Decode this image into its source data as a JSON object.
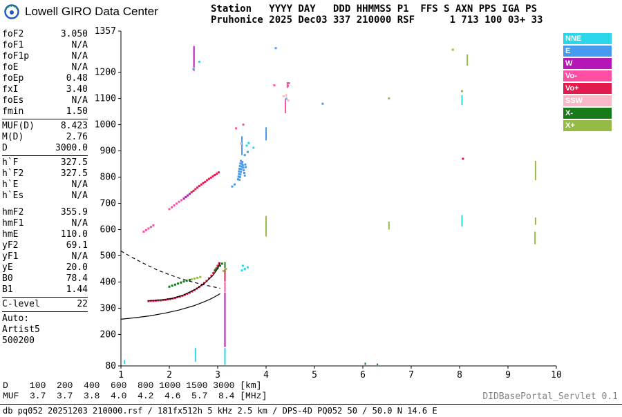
{
  "logo": {
    "text": "Lowell GIRO Data Center"
  },
  "header": {
    "line1": "Station   YYYY DAY   DDD HHMMSS P1  FFS S AXN PPS IGA PS",
    "line2": "Pruhonice 2025 Dec03 337 210000 RSF      1 713 100 03+ 33"
  },
  "params": {
    "groups": [
      {
        "sep": "line",
        "rows": [
          [
            "foF2",
            "3.050"
          ],
          [
            "foF1",
            "N/A"
          ],
          [
            "foF1p",
            "N/A"
          ],
          [
            "foE",
            "N/A"
          ],
          [
            "foEp",
            "0.48"
          ],
          [
            "fxI",
            "3.40"
          ],
          [
            "foEs",
            "N/A"
          ],
          [
            "fmin",
            "1.50"
          ]
        ]
      },
      {
        "sep": "line",
        "rows": [
          [
            "MUF(D)",
            "8.423"
          ],
          [
            "M(D)",
            "2.76"
          ],
          [
            "D",
            "3000.0"
          ]
        ]
      },
      {
        "sep": "gap",
        "rows": [
          [
            "h`F",
            "327.5"
          ],
          [
            "h`F2",
            "327.5"
          ],
          [
            "h`E",
            "N/A"
          ],
          [
            "h`Es",
            "N/A"
          ]
        ]
      },
      {
        "sep": "line",
        "rows": [
          [
            "hmF2",
            "355.9"
          ],
          [
            "hmF1",
            "N/A"
          ],
          [
            "hmE",
            "110.0"
          ],
          [
            "yF2",
            "69.1"
          ],
          [
            "yF1",
            "N/A"
          ],
          [
            "yE",
            "20.0"
          ],
          [
            "B0",
            "78.4"
          ],
          [
            "B1",
            "1.44"
          ]
        ]
      },
      {
        "sep": "line",
        "rows": [
          [
            "C-level",
            "22"
          ]
        ]
      },
      {
        "sep": "none",
        "rows": [
          [
            "Auto:",
            ""
          ],
          [
            "Artist5",
            ""
          ],
          [
            "500200",
            ""
          ]
        ]
      }
    ]
  },
  "chart_data": {
    "type": "scatter",
    "x_unit": "MHz",
    "y_unit": "km",
    "x_range": [
      1,
      10
    ],
    "y_range": [
      80,
      1357
    ],
    "x_ticks": [
      1,
      2,
      3,
      4,
      5,
      6,
      7,
      8,
      9,
      10
    ],
    "y_ticks": [
      1357,
      1200,
      1100,
      1000,
      900,
      800,
      700,
      600,
      500,
      400,
      300,
      200,
      80
    ],
    "grid": false,
    "legend_position": "top-right",
    "legend": [
      {
        "label": "NNE",
        "color": "#2bd6e8"
      },
      {
        "label": "E",
        "color": "#469af0"
      },
      {
        "label": "W",
        "color": "#b517b5"
      },
      {
        "label": "Vo-",
        "color": "#ff4fa3"
      },
      {
        "label": "Vo+",
        "color": "#e31a4d"
      },
      {
        "label": "SSW",
        "color": "#f9b8c6"
      },
      {
        "label": "X-",
        "color": "#187a18"
      },
      {
        "label": "X+",
        "color": "#93bb45"
      }
    ],
    "streaks": [
      [
        "NNE",
        1.07,
        88,
        102
      ],
      [
        "NNE",
        2.54,
        96,
        148
      ],
      [
        "W",
        2.51,
        1218,
        1300
      ],
      [
        "Vo-",
        2.51,
        1204,
        1216
      ],
      [
        "NNE",
        3.15,
        84,
        148
      ],
      [
        "W",
        3.15,
        152,
        360
      ],
      [
        "Vo-",
        3.15,
        362,
        400
      ],
      [
        "Vo+",
        3.15,
        402,
        452
      ],
      [
        "X-",
        3.15,
        454,
        476
      ],
      [
        "E",
        3.5,
        884,
        956
      ],
      [
        "X+",
        4.0,
        574,
        652
      ],
      [
        "E",
        4.0,
        940,
        990
      ],
      [
        "Vo-",
        4.4,
        1044,
        1100
      ],
      [
        "SSW",
        4.42,
        1102,
        1118
      ],
      [
        "Vo-",
        4.44,
        1140,
        1162
      ],
      [
        "X+",
        6.54,
        600,
        630
      ],
      [
        "X-",
        6.05,
        84,
        92
      ],
      [
        "X-",
        6.3,
        83,
        89
      ],
      [
        "NNE",
        8.05,
        612,
        655
      ],
      [
        "NNE",
        8.05,
        1075,
        1112
      ],
      [
        "X+",
        8.16,
        1225,
        1268
      ],
      [
        "X+",
        9.56,
        544,
        592
      ],
      [
        "X+",
        9.57,
        788,
        862
      ],
      [
        "X+",
        9.57,
        618,
        646
      ]
    ],
    "points": {
      "NNE": [
        [
          3.5,
          444
        ],
        [
          3.56,
          450
        ],
        [
          3.62,
          456
        ],
        [
          3.52,
          462
        ],
        [
          3.6,
          920
        ],
        [
          3.64,
          930
        ],
        [
          3.74,
          912
        ],
        [
          2.62,
          1240
        ],
        [
          4.42,
          1098
        ]
      ],
      "E": [
        [
          3.3,
          764
        ],
        [
          3.35,
          772
        ],
        [
          3.42,
          792
        ],
        [
          3.43,
          802
        ],
        [
          3.44,
          812
        ],
        [
          3.44,
          822
        ],
        [
          3.45,
          790
        ],
        [
          3.45,
          832
        ],
        [
          3.46,
          800
        ],
        [
          3.46,
          842
        ],
        [
          3.47,
          810
        ],
        [
          3.47,
          852
        ],
        [
          3.48,
          820
        ],
        [
          3.48,
          862
        ],
        [
          3.49,
          830
        ],
        [
          3.5,
          840
        ],
        [
          3.5,
          850
        ],
        [
          3.51,
          858
        ],
        [
          3.52,
          846
        ],
        [
          3.53,
          836
        ],
        [
          3.54,
          826
        ],
        [
          3.55,
          816
        ],
        [
          3.56,
          806
        ],
        [
          3.57,
          848
        ],
        [
          3.58,
          838
        ],
        [
          3.56,
          884
        ],
        [
          3.62,
          896
        ],
        [
          5.17,
          1080
        ],
        [
          2.5,
          1212
        ],
        [
          4.2,
          1292
        ]
      ],
      "W": [
        [
          2.3,
          718
        ],
        [
          2.34,
          724
        ],
        [
          2.38,
          730
        ],
        [
          2.42,
          736
        ]
      ],
      "Vo-": [
        [
          1.47,
          592
        ],
        [
          1.52,
          598
        ],
        [
          1.57,
          604
        ],
        [
          1.62,
          610
        ],
        [
          1.67,
          616
        ],
        [
          2.0,
          678
        ],
        [
          2.05,
          685
        ],
        [
          2.1,
          692
        ],
        [
          2.15,
          699
        ],
        [
          2.2,
          706
        ],
        [
          2.25,
          712
        ],
        [
          3.38,
          986
        ],
        [
          3.53,
          1000
        ],
        [
          4.17,
          1150
        ],
        [
          4.45,
          1148
        ],
        [
          4.47,
          1158
        ]
      ],
      "Vo+": [
        [
          1.57,
          327
        ],
        [
          1.62,
          328
        ],
        [
          1.67,
          328
        ],
        [
          1.72,
          329
        ],
        [
          1.77,
          330
        ],
        [
          1.82,
          330
        ],
        [
          1.87,
          331
        ],
        [
          1.92,
          332
        ],
        [
          1.97,
          334
        ],
        [
          2.02,
          335
        ],
        [
          2.07,
          337
        ],
        [
          2.12,
          339
        ],
        [
          2.17,
          342
        ],
        [
          2.22,
          344
        ],
        [
          2.27,
          347
        ],
        [
          2.32,
          351
        ],
        [
          2.37,
          355
        ],
        [
          2.42,
          359
        ],
        [
          2.47,
          364
        ],
        [
          2.52,
          369
        ],
        [
          2.57,
          375
        ],
        [
          2.62,
          381
        ],
        [
          2.67,
          388
        ],
        [
          2.72,
          396
        ],
        [
          2.77,
          404
        ],
        [
          2.82,
          414
        ],
        [
          2.87,
          424
        ],
        [
          2.91,
          434
        ],
        [
          2.94,
          443
        ],
        [
          2.97,
          452
        ],
        [
          3.0,
          462
        ],
        [
          3.03,
          471
        ],
        [
          2.46,
          742
        ],
        [
          2.5,
          748
        ],
        [
          2.54,
          754
        ],
        [
          2.58,
          760
        ],
        [
          2.62,
          766
        ],
        [
          2.66,
          772
        ],
        [
          2.7,
          777
        ],
        [
          2.74,
          782
        ],
        [
          2.78,
          788
        ],
        [
          2.82,
          793
        ],
        [
          2.86,
          798
        ],
        [
          2.9,
          803
        ],
        [
          2.94,
          808
        ],
        [
          2.98,
          813
        ],
        [
          3.02,
          818
        ],
        [
          8.07,
          870
        ]
      ],
      "SSW": [
        [
          4.36,
          1108
        ],
        [
          4.46,
          1092
        ],
        [
          3.48,
          928
        ]
      ],
      "X-": [
        [
          2.0,
          382
        ],
        [
          2.06,
          386
        ],
        [
          2.12,
          390
        ],
        [
          2.18,
          394
        ],
        [
          2.24,
          398
        ],
        [
          2.3,
          402
        ],
        [
          2.36,
          405
        ],
        [
          2.42,
          408
        ],
        [
          2.95,
          446
        ],
        [
          3.0,
          454
        ],
        [
          3.05,
          462
        ],
        [
          3.09,
          470
        ]
      ],
      "X+": [
        [
          2.46,
          410
        ],
        [
          2.52,
          413
        ],
        [
          2.58,
          416
        ],
        [
          2.64,
          419
        ],
        [
          3.12,
          442
        ],
        [
          3.17,
          450
        ],
        [
          6.54,
          1100
        ],
        [
          7.86,
          1286
        ],
        [
          8.05,
          1128
        ]
      ]
    },
    "lines": [
      {
        "name": "true-height-profile",
        "style": "solid",
        "points": [
          [
            1.0,
            258
          ],
          [
            1.3,
            264
          ],
          [
            1.6,
            271
          ],
          [
            1.9,
            281
          ],
          [
            2.2,
            293
          ],
          [
            2.5,
            309
          ],
          [
            2.7,
            323
          ],
          [
            2.85,
            335
          ],
          [
            2.95,
            345
          ],
          [
            3.02,
            352
          ],
          [
            3.05,
            356
          ]
        ]
      },
      {
        "name": "trace-fit",
        "style": "solid",
        "points": [
          [
            1.55,
            328
          ],
          [
            1.8,
            331
          ],
          [
            2.05,
            337
          ],
          [
            2.3,
            351
          ],
          [
            2.55,
            373
          ],
          [
            2.75,
            399
          ],
          [
            2.9,
            425
          ],
          [
            3.0,
            451
          ],
          [
            3.05,
            474
          ]
        ]
      },
      {
        "name": "extrapolated-trace",
        "style": "dashed",
        "points": [
          [
            1.0,
            518
          ],
          [
            1.25,
            492
          ],
          [
            1.5,
            468
          ],
          [
            1.75,
            446
          ],
          [
            2.0,
            428
          ],
          [
            2.25,
            412
          ],
          [
            2.5,
            399
          ],
          [
            2.7,
            390
          ],
          [
            2.9,
            382
          ],
          [
            3.05,
            376
          ]
        ]
      }
    ]
  },
  "muf_table": {
    "rows": [
      {
        "label": "D",
        "values": [
          "100",
          "200",
          "400",
          "600",
          "800",
          "1000",
          "1500",
          "3000"
        ],
        "unit": "[km]"
      },
      {
        "label": "MUF",
        "values": [
          "3.7",
          "3.7",
          "3.8",
          "4.0",
          "4.2",
          "4.6",
          "5.7",
          "8.4"
        ],
        "unit": "[MHz]"
      }
    ]
  },
  "footer": {
    "status": "db pq052 20251203 210000.rsf / 181fx512h 5 kHz 2.5 km / DPS-4D PQ052 50 / 50.0 N 14.6 E",
    "servlet": "DIDBasePortal_Servlet 0.1"
  }
}
